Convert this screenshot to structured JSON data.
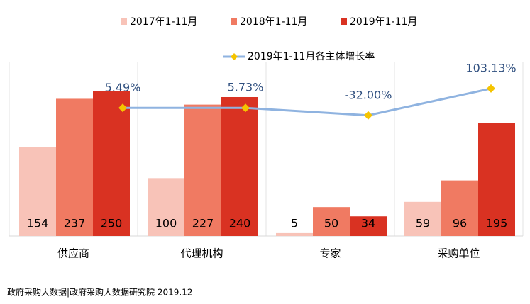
{
  "chart_data": {
    "type": "bar",
    "categories": [
      "供应商",
      "代理机构",
      "专家",
      "采购单位"
    ],
    "series": [
      {
        "name": "2017年1-11月",
        "color": "#f8c3b8",
        "values": [
          154,
          100,
          5,
          59
        ]
      },
      {
        "name": "2018年1-11月",
        "color": "#f07a62",
        "values": [
          237,
          227,
          50,
          96
        ]
      },
      {
        "name": "2019年1-11月",
        "color": "#d93222",
        "values": [
          250,
          240,
          34,
          195
        ]
      },
      {
        "name": "2019年1-11月各主体增长率",
        "type": "line",
        "axis": "y2",
        "color": "#8fb3e0",
        "marker_color": "#f5c400",
        "values": [
          5.49,
          5.73,
          -32.0,
          103.13
        ],
        "value_labels": [
          "5.49%",
          "5.73%",
          "-32.00%",
          "103.13%"
        ]
      }
    ],
    "ylim": [
      0,
      300
    ],
    "y2lim": [
      -640,
      235
    ],
    "source": "政府采购大数据|政府采购大数据研究院 2019.12"
  }
}
